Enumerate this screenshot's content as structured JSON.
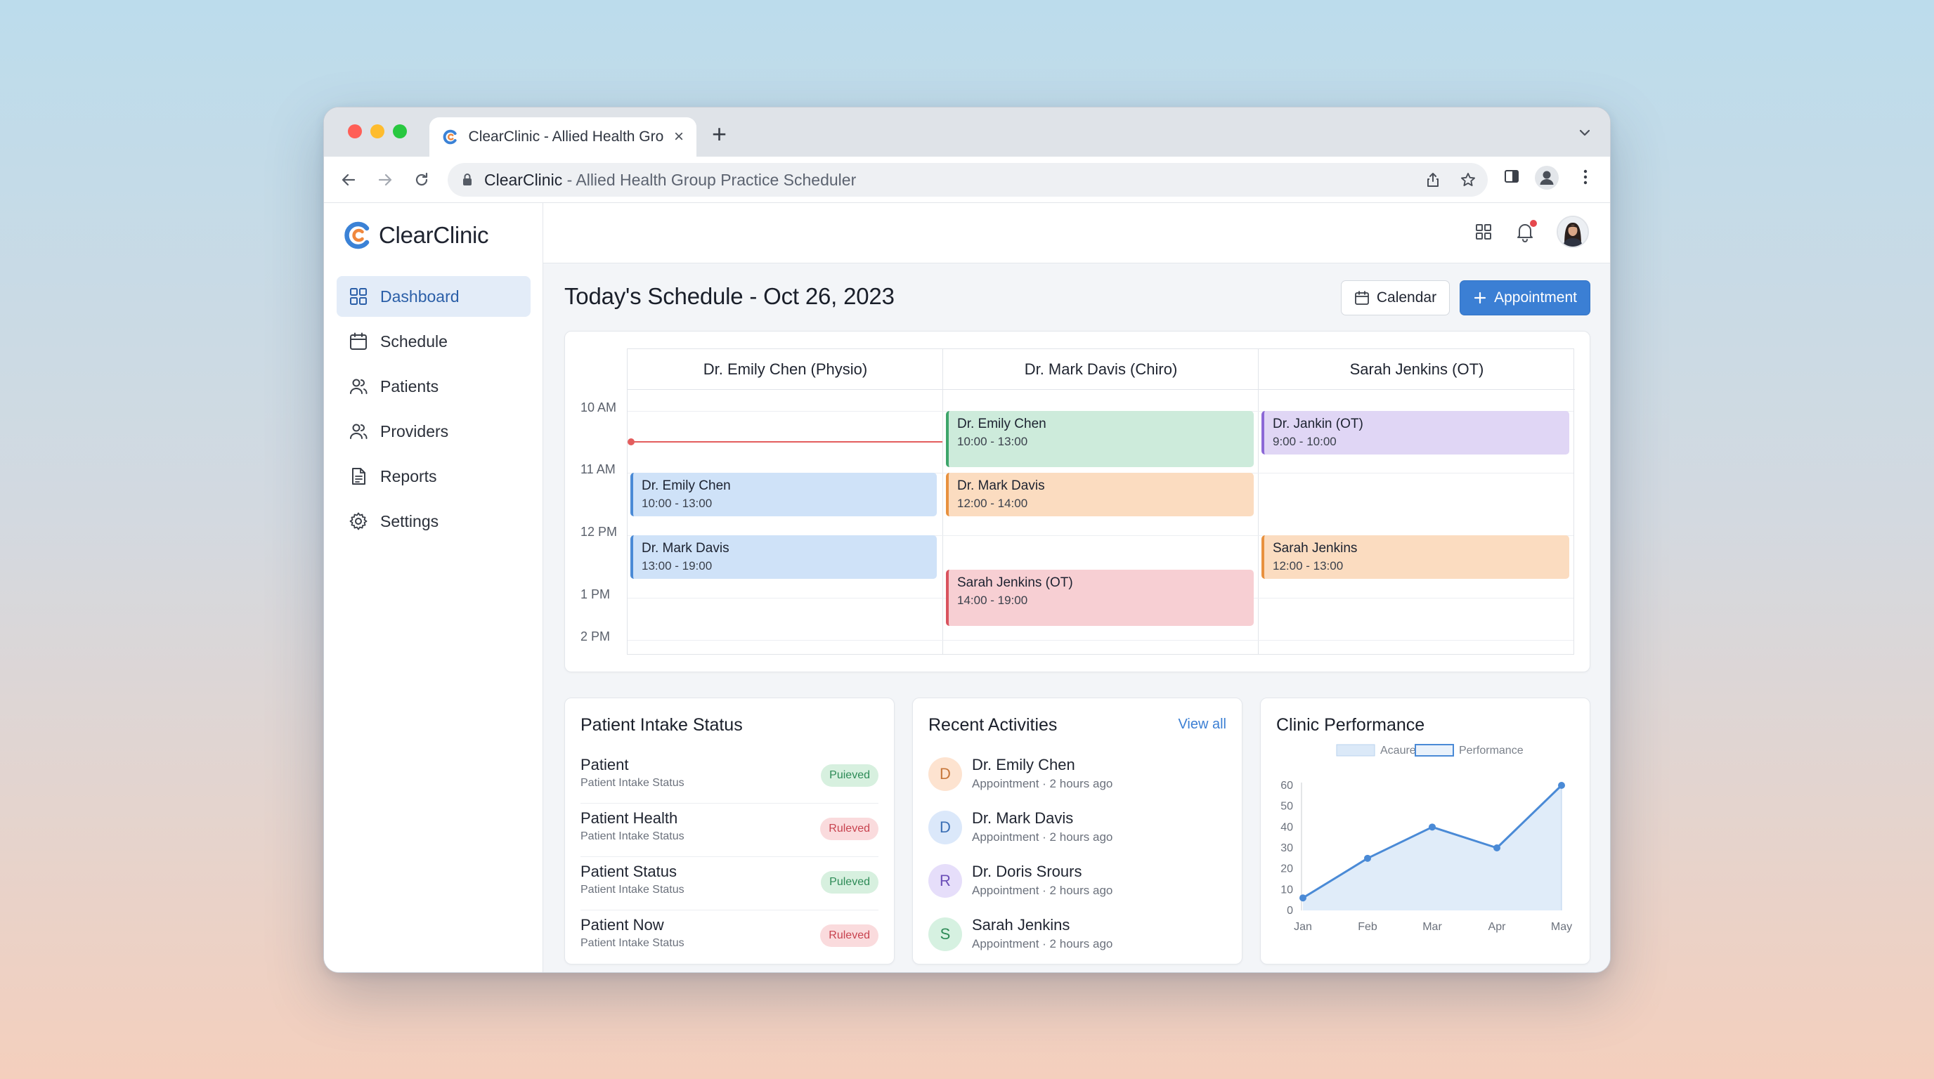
{
  "browser": {
    "tab_title": "ClearClinic - Allied Health Gro",
    "url_host": "ClearClinic",
    "url_rest": " - Allied Health Group Practice Scheduler"
  },
  "brand": {
    "name": "ClearClinic"
  },
  "sidebar": {
    "items": [
      {
        "label": "Dashboard",
        "icon": "dashboard-icon",
        "active": true
      },
      {
        "label": "Schedule",
        "icon": "calendar-icon",
        "active": false
      },
      {
        "label": "Patients",
        "icon": "patients-icon",
        "active": false
      },
      {
        "label": "Providers",
        "icon": "providers-icon",
        "active": false
      },
      {
        "label": "Reports",
        "icon": "reports-icon",
        "active": false
      },
      {
        "label": "Settings",
        "icon": "gear-icon",
        "active": false
      }
    ]
  },
  "header": {
    "title": "Today's Schedule - Oct 26, 2023",
    "calendar_btn": "Calendar",
    "appointment_btn": "Appointment"
  },
  "schedule": {
    "columns": [
      "Dr. Emily Chen (Physio)",
      "Dr. Mark Davis (Chiro)",
      "Sarah Jenkins (OT)"
    ],
    "times": [
      "10 AM",
      "11 AM",
      "12 PM",
      "1 PM",
      "2 PM"
    ],
    "events": [
      {
        "name": "Dr. Emily Chen",
        "time": "10:00 - 13:00",
        "color": "blue"
      },
      {
        "name": "Dr. Mark Davis",
        "time": "13:00 - 19:00",
        "color": "blue"
      },
      {
        "name": "Dr. Emily Chen",
        "time": "10:00 - 13:00",
        "color": "green"
      },
      {
        "name": "Dr. Mark Davis",
        "time": "12:00 - 14:00",
        "color": "orange"
      },
      {
        "name": "Sarah Jenkins (OT)",
        "time": "14:00 - 19:00",
        "color": "red"
      },
      {
        "name": "Dr. Jankin (OT)",
        "time": "9:00 - 10:00",
        "color": "purple"
      },
      {
        "name": "Sarah Jenkins",
        "time": "12:00 - 13:00",
        "color": "orange"
      }
    ]
  },
  "intake": {
    "title": "Patient Intake Status",
    "rows": [
      {
        "name": "Patient",
        "sub": "Patient Intake Status",
        "badge": "Puieved",
        "status": "green"
      },
      {
        "name": "Patient Health",
        "sub": "Patient Intake Status",
        "badge": "Ruleved",
        "status": "red"
      },
      {
        "name": "Patient Status",
        "sub": "Patient Intake Status",
        "badge": "Puleved",
        "status": "green"
      },
      {
        "name": "Patient Now",
        "sub": "Patient Intake Status",
        "badge": "Ruleved",
        "status": "red"
      }
    ]
  },
  "activities": {
    "title": "Recent Activities",
    "view_all": "View all",
    "rows": [
      {
        "initial": "D",
        "name": "Dr. Emily Chen",
        "sub": "Appointment · 2 hours ago",
        "bg": "#fde3d0",
        "fg": "#c7773a"
      },
      {
        "initial": "D",
        "name": "Dr. Mark Davis",
        "sub": "Appointment · 2 hours ago",
        "bg": "#dbe8fa",
        "fg": "#3b6fb5"
      },
      {
        "initial": "R",
        "name": "Dr. Doris Srours",
        "sub": "Appointment · 2 hours ago",
        "bg": "#e6defa",
        "fg": "#6b4fb8"
      },
      {
        "initial": "S",
        "name": "Sarah Jenkins",
        "sub": "Appointment · 2 hours ago",
        "bg": "#d6f1e1",
        "fg": "#2e8b57"
      }
    ]
  },
  "performance": {
    "title": "Clinic Performance",
    "legend": [
      "Acaure",
      "Performance"
    ]
  },
  "chart_data": {
    "type": "area",
    "title": "Clinic Performance",
    "categories": [
      "Jan",
      "Feb",
      "Mar",
      "Apr",
      "May"
    ],
    "series": [
      {
        "name": "Performance",
        "values": [
          6,
          25,
          40,
          30,
          60
        ]
      }
    ],
    "legend": [
      "Acaure",
      "Performance"
    ],
    "yticks": [
      0,
      10,
      20,
      30,
      40,
      50,
      60
    ],
    "ylim": [
      0,
      60
    ],
    "grid": false,
    "legend_position": "top",
    "colors": {
      "line": "#4a8ad6",
      "fill": "#dbe9f8"
    }
  }
}
